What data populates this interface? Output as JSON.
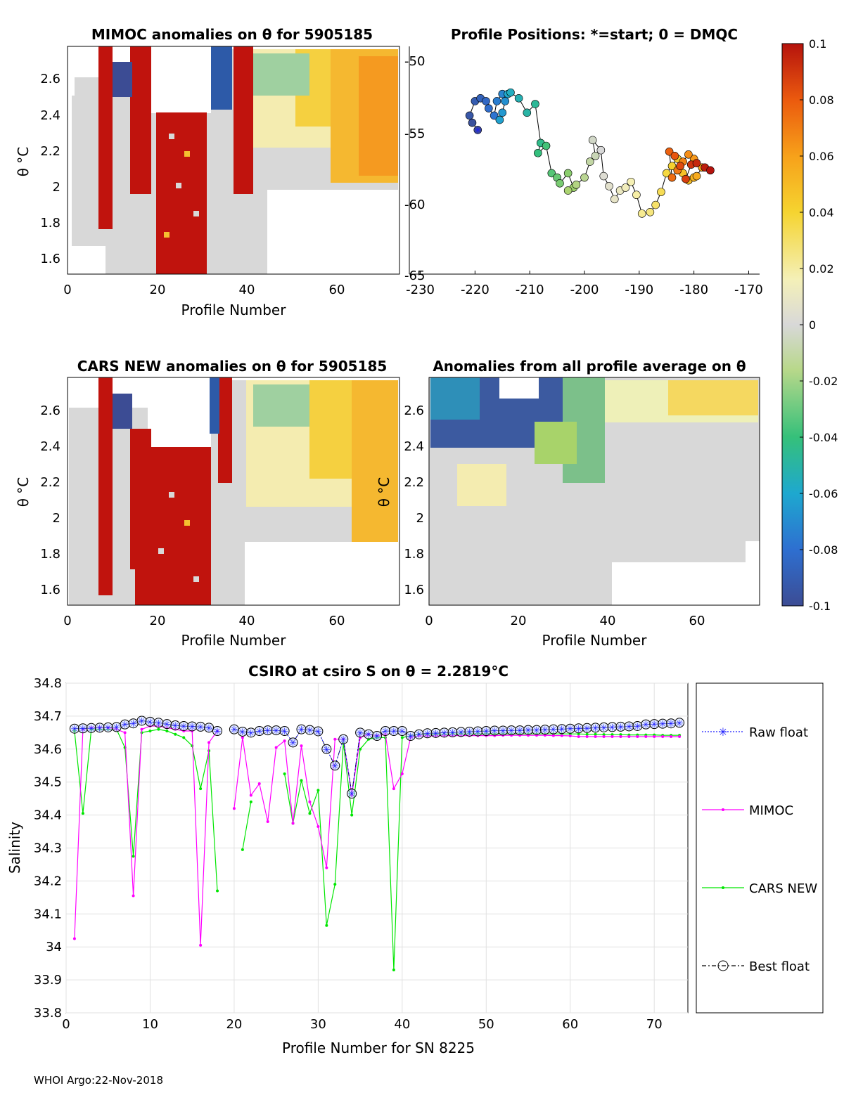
{
  "footer": "WHOI Argo:22-Nov-2018",
  "colorbar": {
    "ticks": [
      "0.1",
      "0.08",
      "0.06",
      "0.04",
      "0.02",
      "0",
      "-0.02",
      "-0.04",
      "-0.06",
      "-0.08",
      "-0.1"
    ],
    "range": [
      -0.1,
      0.1
    ],
    "stops": [
      "#3c4c94",
      "#2e6fd0",
      "#1ea8cf",
      "#35c07a",
      "#a8d36a",
      "#d8d8d8",
      "#f7f2b3",
      "#f5d430",
      "#f7a11a",
      "#eb5a0e",
      "#b5130d"
    ]
  },
  "panels": {
    "mimoc": {
      "title": "MIMOC anomalies on θ  for 5905185",
      "xlabel": "Profile Number",
      "ylabel": "θ °C",
      "xticks": [
        "0",
        "20",
        "40",
        "60"
      ],
      "yticks": [
        "2.6",
        "2.4",
        "2.2",
        "2",
        "1.8",
        "1.6"
      ]
    },
    "positions": {
      "title": "Profile Positions: *=start; 0 = DMQC",
      "xticks": [
        "-230",
        "-220",
        "-210",
        "-200",
        "-190",
        "-180",
        "-170"
      ],
      "yticks": [
        "-50",
        "-55",
        "-60",
        "-65"
      ]
    },
    "cars": {
      "title": "CARS NEW anomalies on θ for 5905185",
      "xlabel": "Profile Number",
      "ylabel": "θ °C",
      "xticks": [
        "0",
        "20",
        "40",
        "60"
      ],
      "yticks": [
        "2.6",
        "2.4",
        "2.2",
        "2",
        "1.8",
        "1.6"
      ]
    },
    "average": {
      "title": "Anomalies from all profile average on θ",
      "xlabel": "Profile Number",
      "ylabel": "θ °C",
      "xticks": [
        "0",
        "20",
        "40",
        "60"
      ],
      "yticks": [
        "2.6",
        "2.4",
        "2.2",
        "2",
        "1.8",
        "1.6"
      ]
    }
  },
  "chart_data": [
    {
      "type": "scatter",
      "title": "Profile Positions: *=start; 0 = DMQC",
      "xlim": [
        -232,
        -168
      ],
      "ylim": [
        -65,
        -49.2
      ],
      "x": [
        -219.5,
        -220.5,
        -221,
        -220,
        -219,
        -218,
        -217.5,
        -216.5,
        -216,
        -215,
        -214.5,
        -215,
        -215.5,
        -214,
        -213.5,
        -212,
        -210.5,
        -209,
        -208,
        -208.5,
        -207,
        -206,
        -205,
        -204.5,
        -203,
        -202,
        -203,
        -201.5,
        -200,
        -199,
        -198,
        -198.5,
        -197,
        -196.5,
        -195.5,
        -194.5,
        -193.5,
        -192.5,
        -191.5,
        -190.5,
        -189.5,
        -188,
        -187,
        -186,
        -185,
        -184,
        -183,
        -182,
        -181,
        -180,
        -179.5,
        -178.5,
        -180,
        -181,
        -182,
        -183,
        -184,
        -184.5,
        -183.5,
        -182.5,
        -181.5,
        -180.5,
        -179.5,
        -178,
        -177
      ],
      "y": [
        -55,
        -54.5,
        -54,
        -53,
        -52.8,
        -53,
        -53.5,
        -54,
        -53,
        -52.5,
        -53,
        -53.8,
        -54.3,
        -52.5,
        -52.4,
        -52.8,
        -53.8,
        -53.2,
        -55.9,
        -56.6,
        -56.1,
        -58,
        -58.3,
        -58.7,
        -58,
        -59,
        -59.2,
        -58.8,
        -58.3,
        -57.2,
        -56.8,
        -55.7,
        -56.4,
        -58.2,
        -58.9,
        -59.8,
        -59.2,
        -59,
        -58.6,
        -59.5,
        -60.8,
        -60.7,
        -60.2,
        -59.3,
        -58,
        -57.5,
        -57,
        -58,
        -58.5,
        -58.3,
        -58.2,
        -57.6,
        -57,
        -56.7,
        -57.2,
        -57.8,
        -58.3,
        -56.5,
        -56.8,
        -57.5,
        -58.4,
        -57.4,
        -57.3,
        -57.6,
        -57.8
      ]
    },
    {
      "type": "line",
      "title": "CSIRO at csiro S on θ = 2.2819°C",
      "xlabel": "Profile Number for SN 8225",
      "ylabel": "Salinity",
      "xlim": [
        0,
        74
      ],
      "ylim": [
        33.8,
        34.8
      ],
      "xticks": [
        "0",
        "10",
        "20",
        "30",
        "40",
        "50",
        "60",
        "70"
      ],
      "yticks": [
        "34.8",
        "34.7",
        "34.6",
        "34.5",
        "34.4",
        "34.3",
        "34.2",
        "34.1",
        "34",
        "33.9",
        "33.8"
      ],
      "legend": [
        "Raw float",
        "MIMOC",
        "CARS NEW",
        "Best float"
      ],
      "x": [
        1,
        2,
        3,
        4,
        5,
        6,
        7,
        8,
        9,
        10,
        11,
        12,
        13,
        14,
        15,
        16,
        17,
        18,
        19,
        20,
        21,
        22,
        23,
        24,
        25,
        26,
        27,
        28,
        29,
        30,
        31,
        32,
        33,
        34,
        35,
        36,
        37,
        38,
        39,
        40,
        41,
        42,
        43,
        44,
        45,
        46,
        47,
        48,
        49,
        50,
        51,
        52,
        53,
        54,
        55,
        56,
        57,
        58,
        59,
        60,
        61,
        62,
        63,
        64,
        65,
        66,
        67,
        68,
        69,
        70,
        71,
        72,
        73
      ],
      "series": [
        {
          "name": "Raw float",
          "values": [
            34.662,
            34.663,
            34.664,
            34.665,
            34.666,
            34.667,
            34.675,
            34.678,
            34.686,
            34.683,
            34.68,
            34.676,
            34.672,
            34.67,
            34.669,
            34.668,
            34.665,
            34.655,
            null,
            34.66,
            34.653,
            34.65,
            34.655,
            34.657,
            34.657,
            34.655,
            34.62,
            34.66,
            34.658,
            34.654,
            34.6,
            34.55,
            34.63,
            34.465,
            34.65,
            34.645,
            34.64,
            34.655,
            34.655,
            34.655,
            34.64,
            34.645,
            34.648,
            34.649,
            34.65,
            34.651,
            34.652,
            34.653,
            34.654,
            34.655,
            34.656,
            34.656,
            34.657,
            34.657,
            34.658,
            34.658,
            34.659,
            34.66,
            34.661,
            34.662,
            34.663,
            34.664,
            34.665,
            34.666,
            34.667,
            34.668,
            34.669,
            34.67,
            34.675,
            34.676,
            34.677,
            34.678,
            34.68
          ]
        },
        {
          "name": "MIMOC",
          "values": [
            34.025,
            34.66,
            34.665,
            34.665,
            34.665,
            34.66,
            34.65,
            34.155,
            34.66,
            34.67,
            34.67,
            34.665,
            34.66,
            34.655,
            34.655,
            34.005,
            34.62,
            34.655,
            null,
            34.42,
            34.635,
            34.46,
            34.495,
            34.38,
            34.605,
            34.625,
            34.375,
            34.61,
            34.44,
            34.365,
            34.24,
            34.63,
            34.63,
            34.46,
            34.635,
            34.645,
            34.64,
            34.645,
            34.48,
            34.525,
            34.635,
            34.64,
            34.64,
            34.64,
            34.641,
            34.641,
            34.641,
            34.641,
            34.641,
            34.641,
            34.641,
            34.642,
            34.642,
            34.642,
            34.642,
            34.642,
            34.642,
            34.641,
            34.641,
            34.64,
            34.638,
            34.638,
            34.638,
            34.638,
            34.638,
            34.638,
            34.638,
            34.638,
            34.638,
            34.638,
            34.638,
            34.638,
            34.638
          ]
        },
        {
          "name": "CARS NEW",
          "values": [
            34.655,
            34.405,
            34.66,
            34.66,
            34.66,
            34.66,
            34.605,
            34.275,
            34.65,
            34.655,
            34.66,
            34.655,
            34.645,
            34.635,
            34.61,
            34.48,
            34.595,
            34.17,
            null,
            null,
            34.295,
            34.44,
            null,
            null,
            null,
            34.525,
            34.375,
            34.505,
            34.405,
            34.475,
            34.065,
            34.19,
            34.62,
            34.4,
            34.6,
            34.63,
            34.635,
            34.635,
            33.93,
            34.635,
            34.64,
            34.645,
            34.645,
            34.645,
            34.645,
            34.646,
            34.646,
            34.646,
            34.646,
            34.646,
            34.646,
            34.646,
            34.646,
            34.646,
            34.646,
            34.646,
            34.646,
            34.646,
            34.646,
            34.646,
            34.646,
            34.645,
            34.645,
            34.644,
            34.644,
            34.644,
            34.643,
            34.643,
            34.643,
            34.643,
            34.642,
            34.642,
            34.642
          ]
        },
        {
          "name": "Best float",
          "values": [
            34.662,
            34.663,
            34.664,
            34.665,
            34.666,
            34.667,
            34.675,
            34.678,
            34.686,
            34.683,
            34.68,
            34.676,
            34.672,
            34.67,
            34.669,
            34.668,
            34.665,
            34.655,
            null,
            34.66,
            34.653,
            34.65,
            34.655,
            34.657,
            34.657,
            34.655,
            34.62,
            34.66,
            34.658,
            34.654,
            34.6,
            34.55,
            34.63,
            34.465,
            34.65,
            34.645,
            34.64,
            34.655,
            34.655,
            34.655,
            34.64,
            34.645,
            34.648,
            34.649,
            34.65,
            34.651,
            34.652,
            34.653,
            34.654,
            34.655,
            34.656,
            34.656,
            34.657,
            34.657,
            34.658,
            34.658,
            34.659,
            34.66,
            34.661,
            34.662,
            34.663,
            34.664,
            34.665,
            34.666,
            34.667,
            34.668,
            34.669,
            34.67,
            34.675,
            34.676,
            34.677,
            34.678,
            34.68
          ]
        }
      ],
      "colors": {
        "raw": "#1a1aff",
        "mimoc": "#ff00ff",
        "cars": "#00e600",
        "best": "#000000"
      }
    }
  ]
}
